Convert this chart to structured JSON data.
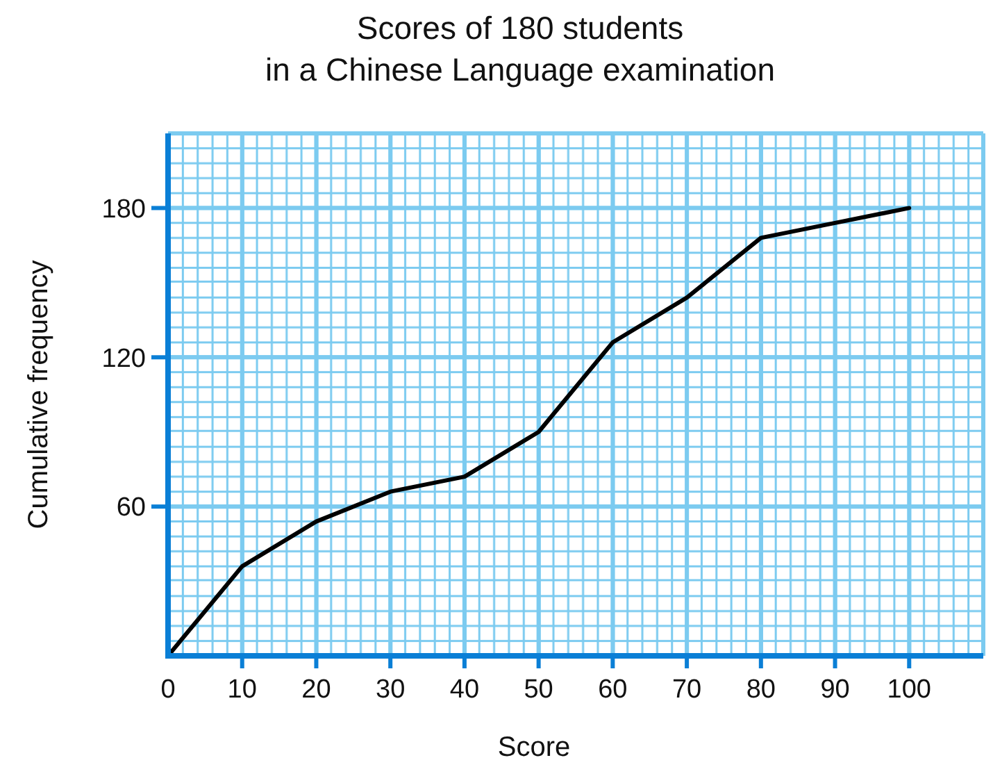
{
  "chart_data": {
    "type": "line",
    "title": "Scores of 180 students\nin a Chinese Language examination",
    "xlabel": "Score",
    "ylabel": "Cumulative frequency",
    "x": [
      0,
      10,
      20,
      30,
      40,
      50,
      60,
      70,
      80,
      90,
      100
    ],
    "series": [
      {
        "color": "#000000",
        "values": [
          0,
          36,
          54,
          66,
          72,
          90,
          126,
          144,
          168,
          174,
          180
        ]
      }
    ],
    "xlim": [
      0,
      110
    ],
    "ylim": [
      0,
      210
    ],
    "xticks": [
      0,
      10,
      20,
      30,
      40,
      50,
      60,
      70,
      80,
      90,
      100
    ],
    "yticks": [
      60,
      120,
      180
    ],
    "grid": true,
    "marker": "none",
    "line_style": "solid"
  }
}
